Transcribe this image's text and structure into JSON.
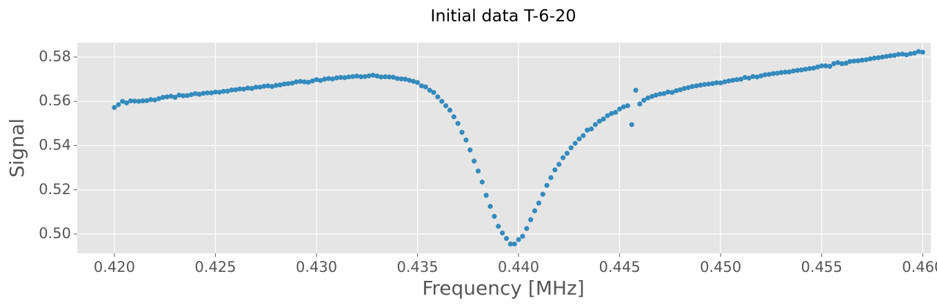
{
  "chart_data": {
    "type": "scatter",
    "title": "Initial data T-6-20",
    "xlabel": "Frequency [MHz]",
    "ylabel": "Signal",
    "color": "#348abd",
    "grid": true,
    "xlim": [
      0.41816,
      0.4604
    ],
    "ylim": [
      0.4913,
      0.5865
    ],
    "xticks": [
      {
        "value": 0.42,
        "label": "0.420"
      },
      0.425,
      {
        "value": 0.43,
        "label": "0.430"
      },
      0.435,
      {
        "value": 0.44,
        "label": "0.440"
      },
      0.445,
      {
        "value": 0.45,
        "label": "0.450"
      },
      0.455,
      {
        "value": 0.46,
        "label": "0.460"
      }
    ],
    "yticks": [
      {
        "value": 0.5,
        "label": "0.50"
      },
      0.52,
      0.54,
      0.56,
      0.58
    ],
    "x": [
      0.42,
      0.4202,
      0.4204,
      0.4206,
      0.4208,
      0.421,
      0.4212,
      0.4214,
      0.4216,
      0.4218,
      0.422,
      0.4222,
      0.4224,
      0.4226,
      0.4228,
      0.423,
      0.4232,
      0.4234,
      0.4236,
      0.4238,
      0.424,
      0.4242,
      0.4244,
      0.4246,
      0.4248,
      0.425,
      0.4252,
      0.4254,
      0.4256,
      0.4258,
      0.426,
      0.4262,
      0.4264,
      0.4266,
      0.4268,
      0.427,
      0.4272,
      0.4274,
      0.4276,
      0.4278,
      0.428,
      0.4282,
      0.4284,
      0.4286,
      0.4288,
      0.429,
      0.4292,
      0.4294,
      0.4296,
      0.4298,
      0.43,
      0.4302,
      0.4304,
      0.4306,
      0.4308,
      0.431,
      0.4312,
      0.4314,
      0.4316,
      0.4318,
      0.432,
      0.4322,
      0.4324,
      0.4326,
      0.4328,
      0.433,
      0.4332,
      0.4334,
      0.4336,
      0.4338,
      0.434,
      0.4342,
      0.4344,
      0.4346,
      0.4348,
      0.435,
      0.4352,
      0.4354,
      0.4356,
      0.4358,
      0.436,
      0.4362,
      0.4364,
      0.4366,
      0.4368,
      0.437,
      0.4372,
      0.4374,
      0.4376,
      0.4378,
      0.438,
      0.4382,
      0.4384,
      0.4386,
      0.4388,
      0.439,
      0.4392,
      0.4394,
      0.4396,
      0.4398,
      0.44,
      0.4402,
      0.4404,
      0.4406,
      0.4408,
      0.441,
      0.4412,
      0.4414,
      0.4416,
      0.4418,
      0.442,
      0.4422,
      0.4424,
      0.4426,
      0.4428,
      0.443,
      0.4432,
      0.4434,
      0.4436,
      0.4438,
      0.444,
      0.4442,
      0.4444,
      0.4446,
      0.4448,
      0.445,
      0.4452,
      0.4454,
      0.4456,
      0.4458,
      0.446,
      0.4462,
      0.4464,
      0.4466,
      0.4468,
      0.447,
      0.4472,
      0.4474,
      0.4476,
      0.4478,
      0.448,
      0.4482,
      0.4484,
      0.4486,
      0.4488,
      0.449,
      0.4492,
      0.4494,
      0.4496,
      0.4498,
      0.45,
      0.4502,
      0.4504,
      0.4506,
      0.4508,
      0.451,
      0.4512,
      0.4514,
      0.4516,
      0.4518,
      0.452,
      0.4522,
      0.4524,
      0.4526,
      0.4528,
      0.453,
      0.4532,
      0.4534,
      0.4536,
      0.4538,
      0.454,
      0.4542,
      0.4544,
      0.4546,
      0.4548,
      0.455,
      0.4552,
      0.4554,
      0.4556,
      0.4558,
      0.456,
      0.4562,
      0.4564,
      0.4566,
      0.4568,
      0.457,
      0.4572,
      0.4574,
      0.4576,
      0.4578,
      0.458,
      0.4582,
      0.4584,
      0.4586,
      0.4588,
      0.459,
      0.4592,
      0.4594,
      0.4596,
      0.4598,
      0.46
    ],
    "values": [
      0.5572,
      0.5585,
      0.56,
      0.5593,
      0.5602,
      0.5601,
      0.56,
      0.5602,
      0.5603,
      0.5608,
      0.5606,
      0.5612,
      0.5618,
      0.562,
      0.5623,
      0.5618,
      0.5628,
      0.5625,
      0.5626,
      0.563,
      0.5635,
      0.5632,
      0.5636,
      0.5638,
      0.5638,
      0.5642,
      0.5641,
      0.5645,
      0.5646,
      0.5651,
      0.5652,
      0.5656,
      0.5655,
      0.566,
      0.5658,
      0.5664,
      0.5664,
      0.5668,
      0.567,
      0.5667,
      0.5672,
      0.5674,
      0.5678,
      0.568,
      0.5682,
      0.5688,
      0.569,
      0.5688,
      0.5686,
      0.5692,
      0.5698,
      0.5694,
      0.57,
      0.5703,
      0.5701,
      0.5706,
      0.5708,
      0.5707,
      0.571,
      0.5712,
      0.5714,
      0.5711,
      0.5712,
      0.5715,
      0.5718,
      0.5714,
      0.571,
      0.5711,
      0.571,
      0.5709,
      0.5703,
      0.5701,
      0.57,
      0.5695,
      0.569,
      0.5685,
      0.567,
      0.5665,
      0.565,
      0.564,
      0.562,
      0.56,
      0.558,
      0.556,
      0.553,
      0.55,
      0.546,
      0.5425,
      0.538,
      0.533,
      0.5285,
      0.5235,
      0.5175,
      0.5125,
      0.508,
      0.5035,
      0.5005,
      0.498,
      0.4955,
      0.4955,
      0.4975,
      0.499,
      0.5025,
      0.5065,
      0.5105,
      0.514,
      0.518,
      0.522,
      0.5255,
      0.529,
      0.5315,
      0.5345,
      0.5365,
      0.539,
      0.541,
      0.543,
      0.5445,
      0.547,
      0.5475,
      0.5495,
      0.551,
      0.552,
      0.5535,
      0.5545,
      0.555,
      0.5565,
      0.5575,
      0.558,
      0.5495,
      0.565,
      0.5588,
      0.5605,
      0.5615,
      0.5622,
      0.5628,
      0.5633,
      0.5635,
      0.5642,
      0.564,
      0.5648,
      0.5652,
      0.5658,
      0.5662,
      0.5667,
      0.567,
      0.5673,
      0.5676,
      0.5678,
      0.568,
      0.5684,
      0.5683,
      0.5688,
      0.5692,
      0.5695,
      0.5698,
      0.57,
      0.5708,
      0.5705,
      0.5712,
      0.571,
      0.5715,
      0.572,
      0.5722,
      0.5725,
      0.5727,
      0.573,
      0.5732,
      0.5733,
      0.5737,
      0.574,
      0.5742,
      0.5745,
      0.5748,
      0.575,
      0.5755,
      0.576,
      0.576,
      0.5758,
      0.577,
      0.5775,
      0.577,
      0.5772,
      0.578,
      0.5782,
      0.5783,
      0.5786,
      0.5788,
      0.5792,
      0.5795,
      0.5797,
      0.58,
      0.5803,
      0.5806,
      0.5808,
      0.5812,
      0.5813,
      0.581,
      0.5815,
      0.5818,
      0.5825,
      0.5822
    ]
  }
}
